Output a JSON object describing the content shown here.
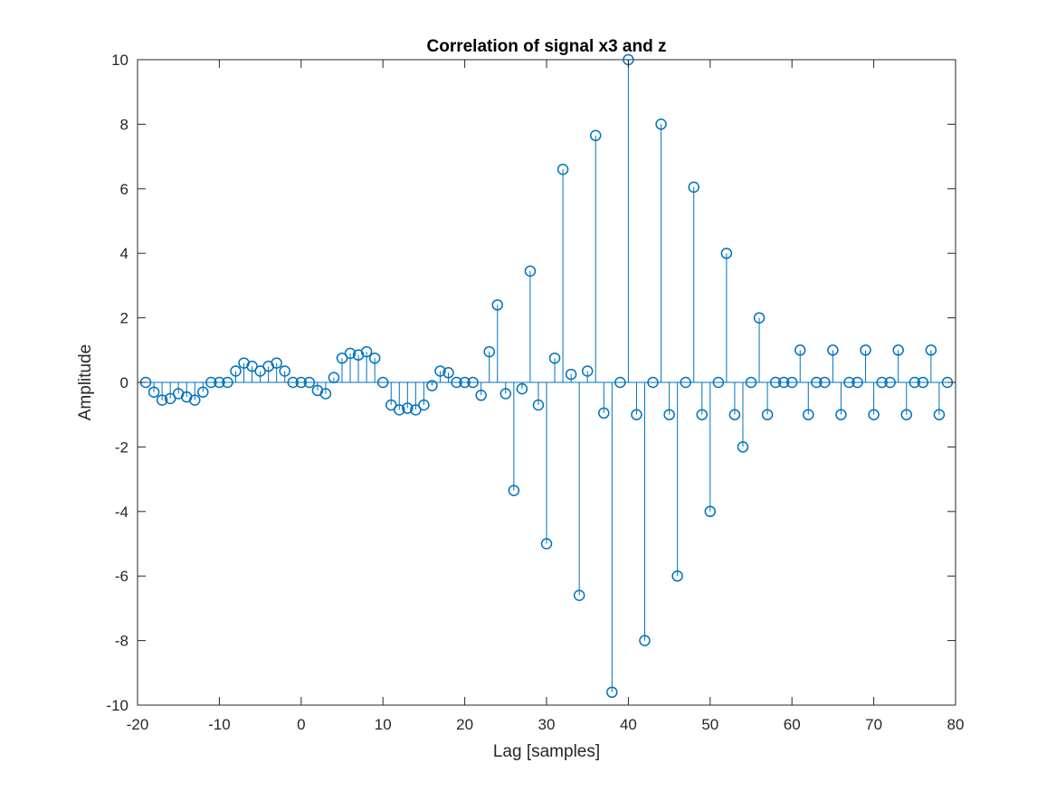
{
  "chart_data": {
    "type": "stem",
    "title": "Correlation of signal x3 and z",
    "xlabel": "Lag [samples]",
    "ylabel": "Amplitude",
    "xlim": [
      -20,
      80
    ],
    "ylim": [
      -10,
      10
    ],
    "xticks": [
      -20,
      -10,
      0,
      10,
      20,
      30,
      40,
      50,
      60,
      70,
      80
    ],
    "xtick_labels": [
      "-20",
      "-10",
      "0",
      "10",
      "20",
      "30",
      "40",
      "50",
      "60",
      "70",
      "80"
    ],
    "yticks": [
      -10,
      -8,
      -6,
      -4,
      -2,
      0,
      2,
      4,
      6,
      8,
      10
    ],
    "ytick_labels": [
      "-10",
      "-8",
      "-6",
      "-4",
      "-2",
      "0",
      "2",
      "4",
      "6",
      "8",
      "10"
    ],
    "grid": false,
    "color": "#0072BD",
    "x": [
      -19,
      -18,
      -17,
      -16,
      -15,
      -14,
      -13,
      -12,
      -11,
      -10,
      -9,
      -8,
      -7,
      -6,
      -5,
      -4,
      -3,
      -2,
      -1,
      0,
      1,
      2,
      3,
      4,
      5,
      6,
      7,
      8,
      9,
      10,
      11,
      12,
      13,
      14,
      15,
      16,
      17,
      18,
      19,
      20,
      21,
      22,
      23,
      24,
      25,
      26,
      27,
      28,
      29,
      30,
      31,
      32,
      33,
      34,
      35,
      36,
      37,
      38,
      39,
      40,
      41,
      42,
      43,
      44,
      45,
      46,
      47,
      48,
      49,
      50,
      51,
      52,
      53,
      54,
      55,
      56,
      57,
      58,
      59,
      60,
      61,
      62,
      63,
      64,
      65,
      66,
      67,
      68,
      69,
      70,
      71,
      72,
      73,
      74,
      75,
      76,
      77,
      78,
      79
    ],
    "y": [
      0,
      -0.3,
      -0.55,
      -0.5,
      -0.35,
      -0.45,
      -0.55,
      -0.3,
      0,
      0,
      0,
      0.35,
      0.6,
      0.5,
      0.35,
      0.5,
      0.6,
      0.35,
      0,
      0,
      0,
      -0.25,
      -0.35,
      0.15,
      0.75,
      0.9,
      0.85,
      0.95,
      0.75,
      0,
      -0.7,
      -0.85,
      -0.8,
      -0.85,
      -0.7,
      -0.1,
      0.35,
      0.3,
      0,
      0,
      0,
      -0.4,
      0.95,
      2.4,
      -0.35,
      -3.35,
      -0.2,
      3.45,
      -0.7,
      -5,
      0.75,
      6.6,
      0.25,
      -6.6,
      0.35,
      7.65,
      -0.95,
      -9.6,
      0,
      10,
      -1,
      -8,
      0,
      8,
      -1,
      -6,
      0,
      6.05,
      -1,
      -4,
      0,
      4,
      -1,
      -2,
      0,
      2,
      -1,
      0,
      0,
      0,
      1,
      -1,
      0,
      0,
      1,
      -1,
      0,
      0,
      1,
      -1,
      0,
      0,
      1,
      -1,
      0,
      0,
      1,
      -1,
      0
    ]
  }
}
